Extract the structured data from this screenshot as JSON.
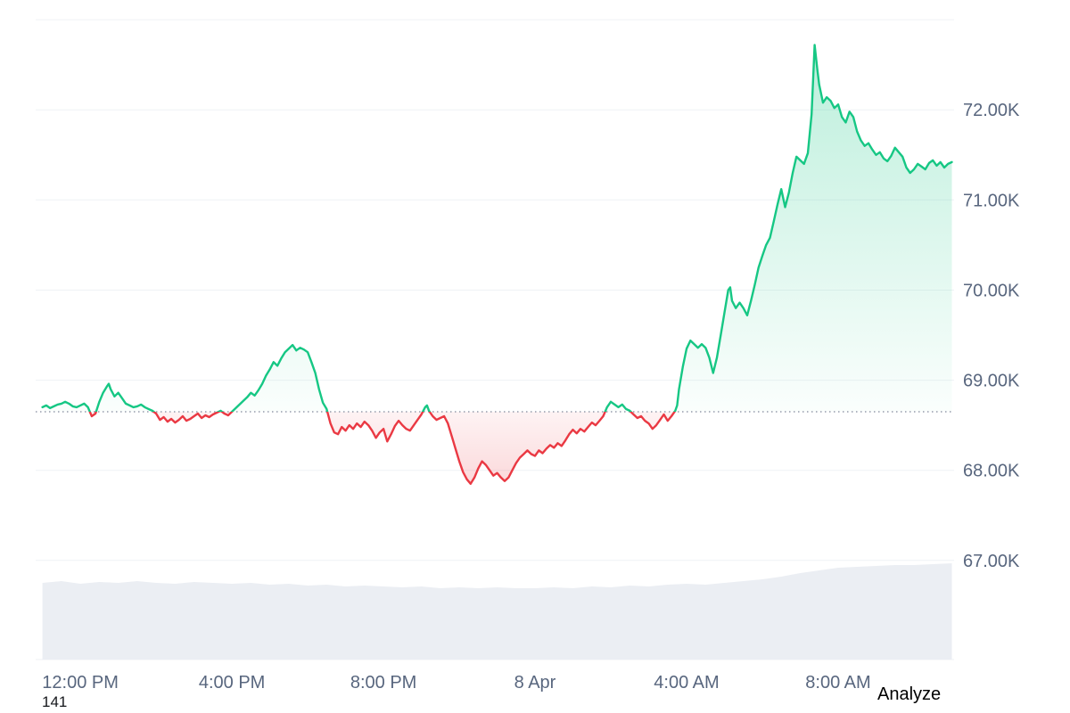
{
  "footer": {
    "left_text": "141",
    "analyze_label": "Analyze"
  },
  "chart_data": {
    "type": "line",
    "title": "",
    "xlabel": "",
    "ylabel": "",
    "x_unit": "hours since 11:00 AM (Apr 7 -> Apr 8)",
    "baseline": 68.65,
    "xlim": [
      -0.18,
      24.06
    ],
    "ylim": [
      65.9,
      73.12
    ],
    "grid": true,
    "legend": "none",
    "y_grid_values": [
      67,
      68,
      69,
      70,
      71,
      72,
      73
    ],
    "y_ticks": [
      {
        "label": "67.00K",
        "value": 67
      },
      {
        "label": "68.00K",
        "value": 68
      },
      {
        "label": "69.00K",
        "value": 69
      },
      {
        "label": "70.00K",
        "value": 70
      },
      {
        "label": "71.00K",
        "value": 71
      },
      {
        "label": "72.00K",
        "value": 72
      }
    ],
    "x_ticks": [
      {
        "label": "12:00 PM",
        "t": 1
      },
      {
        "label": "4:00 PM",
        "t": 5
      },
      {
        "label": "8:00 PM",
        "t": 9
      },
      {
        "label": "8 Apr",
        "t": 13
      },
      {
        "label": "4:00 AM",
        "t": 17
      },
      {
        "label": "8:00 AM",
        "t": 21
      }
    ],
    "colors": {
      "up": "#16c784",
      "down": "#ea3943",
      "grid": "#eff2f5",
      "axis_text": "#58667e",
      "baseline": "#80889a",
      "volume": "#ebeef3"
    },
    "series": [
      {
        "name": "price",
        "points": [
          [
            0.0,
            68.7
          ],
          [
            0.1,
            68.72
          ],
          [
            0.2,
            68.69
          ],
          [
            0.3,
            68.71
          ],
          [
            0.4,
            68.73
          ],
          [
            0.5,
            68.74
          ],
          [
            0.6,
            68.76
          ],
          [
            0.7,
            68.74
          ],
          [
            0.8,
            68.71
          ],
          [
            0.9,
            68.7
          ],
          [
            1.0,
            68.72
          ],
          [
            1.1,
            68.74
          ],
          [
            1.2,
            68.7
          ],
          [
            1.3,
            68.6
          ],
          [
            1.4,
            68.63
          ],
          [
            1.5,
            68.76
          ],
          [
            1.6,
            68.86
          ],
          [
            1.7,
            68.93
          ],
          [
            1.75,
            68.96
          ],
          [
            1.8,
            68.9
          ],
          [
            1.9,
            68.82
          ],
          [
            2.0,
            68.86
          ],
          [
            2.1,
            68.8
          ],
          [
            2.2,
            68.74
          ],
          [
            2.3,
            68.72
          ],
          [
            2.4,
            68.7
          ],
          [
            2.5,
            68.71
          ],
          [
            2.6,
            68.73
          ],
          [
            2.7,
            68.7
          ],
          [
            2.8,
            68.68
          ],
          [
            2.9,
            68.66
          ],
          [
            3.0,
            68.63
          ],
          [
            3.1,
            68.56
          ],
          [
            3.2,
            68.59
          ],
          [
            3.3,
            68.54
          ],
          [
            3.4,
            68.57
          ],
          [
            3.5,
            68.53
          ],
          [
            3.6,
            68.56
          ],
          [
            3.7,
            68.6
          ],
          [
            3.8,
            68.55
          ],
          [
            3.9,
            68.57
          ],
          [
            4.0,
            68.6
          ],
          [
            4.1,
            68.63
          ],
          [
            4.2,
            68.58
          ],
          [
            4.3,
            68.61
          ],
          [
            4.4,
            68.59
          ],
          [
            4.5,
            68.62
          ],
          [
            4.6,
            68.64
          ],
          [
            4.7,
            68.66
          ],
          [
            4.8,
            68.63
          ],
          [
            4.9,
            68.61
          ],
          [
            5.0,
            68.65
          ],
          [
            5.1,
            68.69
          ],
          [
            5.2,
            68.73
          ],
          [
            5.3,
            68.77
          ],
          [
            5.4,
            68.81
          ],
          [
            5.5,
            68.86
          ],
          [
            5.6,
            68.83
          ],
          [
            5.7,
            68.89
          ],
          [
            5.8,
            68.96
          ],
          [
            5.9,
            69.05
          ],
          [
            6.0,
            69.12
          ],
          [
            6.1,
            69.2
          ],
          [
            6.2,
            69.16
          ],
          [
            6.3,
            69.24
          ],
          [
            6.4,
            69.31
          ],
          [
            6.5,
            69.35
          ],
          [
            6.6,
            69.39
          ],
          [
            6.7,
            69.33
          ],
          [
            6.8,
            69.36
          ],
          [
            6.9,
            69.34
          ],
          [
            7.0,
            69.31
          ],
          [
            7.1,
            69.2
          ],
          [
            7.2,
            69.08
          ],
          [
            7.3,
            68.9
          ],
          [
            7.4,
            68.75
          ],
          [
            7.5,
            68.68
          ],
          [
            7.6,
            68.52
          ],
          [
            7.7,
            68.42
          ],
          [
            7.8,
            68.4
          ],
          [
            7.9,
            68.48
          ],
          [
            8.0,
            68.44
          ],
          [
            8.1,
            68.5
          ],
          [
            8.2,
            68.46
          ],
          [
            8.3,
            68.52
          ],
          [
            8.4,
            68.48
          ],
          [
            8.5,
            68.54
          ],
          [
            8.6,
            68.5
          ],
          [
            8.7,
            68.44
          ],
          [
            8.8,
            68.36
          ],
          [
            8.9,
            68.42
          ],
          [
            9.0,
            68.46
          ],
          [
            9.1,
            68.32
          ],
          [
            9.2,
            68.4
          ],
          [
            9.3,
            68.49
          ],
          [
            9.4,
            68.55
          ],
          [
            9.5,
            68.5
          ],
          [
            9.6,
            68.46
          ],
          [
            9.7,
            68.44
          ],
          [
            9.8,
            68.5
          ],
          [
            9.9,
            68.56
          ],
          [
            10.0,
            68.62
          ],
          [
            10.1,
            68.7
          ],
          [
            10.15,
            68.72
          ],
          [
            10.2,
            68.66
          ],
          [
            10.3,
            68.6
          ],
          [
            10.4,
            68.56
          ],
          [
            10.5,
            68.58
          ],
          [
            10.6,
            68.6
          ],
          [
            10.7,
            68.52
          ],
          [
            10.8,
            68.38
          ],
          [
            10.9,
            68.24
          ],
          [
            11.0,
            68.1
          ],
          [
            11.1,
            67.98
          ],
          [
            11.2,
            67.9
          ],
          [
            11.3,
            67.85
          ],
          [
            11.4,
            67.92
          ],
          [
            11.5,
            68.02
          ],
          [
            11.6,
            68.1
          ],
          [
            11.7,
            68.06
          ],
          [
            11.8,
            68.0
          ],
          [
            11.9,
            67.94
          ],
          [
            12.0,
            67.97
          ],
          [
            12.1,
            67.92
          ],
          [
            12.2,
            67.88
          ],
          [
            12.3,
            67.92
          ],
          [
            12.4,
            68.0
          ],
          [
            12.5,
            68.08
          ],
          [
            12.6,
            68.14
          ],
          [
            12.7,
            68.18
          ],
          [
            12.8,
            68.22
          ],
          [
            12.9,
            68.18
          ],
          [
            13.0,
            68.16
          ],
          [
            13.1,
            68.22
          ],
          [
            13.2,
            68.19
          ],
          [
            13.3,
            68.24
          ],
          [
            13.4,
            68.28
          ],
          [
            13.5,
            68.25
          ],
          [
            13.6,
            68.3
          ],
          [
            13.7,
            68.27
          ],
          [
            13.8,
            68.33
          ],
          [
            13.9,
            68.4
          ],
          [
            14.0,
            68.45
          ],
          [
            14.1,
            68.41
          ],
          [
            14.2,
            68.46
          ],
          [
            14.3,
            68.43
          ],
          [
            14.4,
            68.48
          ],
          [
            14.5,
            68.53
          ],
          [
            14.6,
            68.5
          ],
          [
            14.7,
            68.55
          ],
          [
            14.8,
            68.6
          ],
          [
            14.9,
            68.7
          ],
          [
            15.0,
            68.76
          ],
          [
            15.1,
            68.73
          ],
          [
            15.2,
            68.7
          ],
          [
            15.3,
            68.73
          ],
          [
            15.4,
            68.68
          ],
          [
            15.5,
            68.66
          ],
          [
            15.6,
            68.62
          ],
          [
            15.7,
            68.58
          ],
          [
            15.8,
            68.6
          ],
          [
            15.9,
            68.55
          ],
          [
            16.0,
            68.52
          ],
          [
            16.1,
            68.46
          ],
          [
            16.2,
            68.5
          ],
          [
            16.3,
            68.56
          ],
          [
            16.4,
            68.62
          ],
          [
            16.5,
            68.55
          ],
          [
            16.6,
            68.6
          ],
          [
            16.7,
            68.66
          ],
          [
            16.75,
            68.72
          ],
          [
            16.8,
            68.9
          ],
          [
            16.9,
            69.15
          ],
          [
            17.0,
            69.35
          ],
          [
            17.1,
            69.44
          ],
          [
            17.2,
            69.4
          ],
          [
            17.3,
            69.36
          ],
          [
            17.4,
            69.4
          ],
          [
            17.5,
            69.36
          ],
          [
            17.6,
            69.25
          ],
          [
            17.7,
            69.08
          ],
          [
            17.8,
            69.25
          ],
          [
            17.9,
            69.5
          ],
          [
            18.0,
            69.75
          ],
          [
            18.1,
            70.0
          ],
          [
            18.15,
            70.03
          ],
          [
            18.2,
            69.88
          ],
          [
            18.3,
            69.8
          ],
          [
            18.4,
            69.86
          ],
          [
            18.5,
            69.8
          ],
          [
            18.6,
            69.72
          ],
          [
            18.7,
            69.88
          ],
          [
            18.8,
            70.06
          ],
          [
            18.9,
            70.25
          ],
          [
            19.0,
            70.38
          ],
          [
            19.1,
            70.5
          ],
          [
            19.2,
            70.58
          ],
          [
            19.3,
            70.76
          ],
          [
            19.4,
            70.95
          ],
          [
            19.5,
            71.12
          ],
          [
            19.6,
            70.92
          ],
          [
            19.7,
            71.08
          ],
          [
            19.8,
            71.3
          ],
          [
            19.9,
            71.48
          ],
          [
            20.0,
            71.44
          ],
          [
            20.1,
            71.4
          ],
          [
            20.2,
            71.52
          ],
          [
            20.3,
            71.95
          ],
          [
            20.38,
            72.72
          ],
          [
            20.45,
            72.45
          ],
          [
            20.5,
            72.28
          ],
          [
            20.6,
            72.08
          ],
          [
            20.7,
            72.14
          ],
          [
            20.8,
            72.1
          ],
          [
            20.9,
            72.02
          ],
          [
            21.0,
            72.06
          ],
          [
            21.1,
            71.92
          ],
          [
            21.2,
            71.86
          ],
          [
            21.3,
            71.98
          ],
          [
            21.4,
            71.92
          ],
          [
            21.5,
            71.76
          ],
          [
            21.6,
            71.66
          ],
          [
            21.7,
            71.6
          ],
          [
            21.8,
            71.63
          ],
          [
            21.9,
            71.56
          ],
          [
            22.0,
            71.5
          ],
          [
            22.1,
            71.53
          ],
          [
            22.2,
            71.46
          ],
          [
            22.3,
            71.43
          ],
          [
            22.4,
            71.49
          ],
          [
            22.5,
            71.58
          ],
          [
            22.6,
            71.53
          ],
          [
            22.7,
            71.48
          ],
          [
            22.8,
            71.36
          ],
          [
            22.9,
            71.3
          ],
          [
            23.0,
            71.34
          ],
          [
            23.1,
            71.4
          ],
          [
            23.2,
            71.37
          ],
          [
            23.3,
            71.34
          ],
          [
            23.4,
            71.41
          ],
          [
            23.5,
            71.44
          ],
          [
            23.6,
            71.38
          ],
          [
            23.7,
            71.42
          ],
          [
            23.8,
            71.36
          ],
          [
            23.9,
            71.4
          ],
          [
            24.0,
            71.42
          ]
        ]
      }
    ],
    "volume": {
      "points": [
        [
          0,
          86
        ],
        [
          0.5,
          88
        ],
        [
          1,
          85
        ],
        [
          1.5,
          87
        ],
        [
          2,
          86
        ],
        [
          2.5,
          88
        ],
        [
          3,
          86
        ],
        [
          3.5,
          85
        ],
        [
          4,
          87
        ],
        [
          4.5,
          86
        ],
        [
          5,
          85
        ],
        [
          5.5,
          86
        ],
        [
          6,
          84
        ],
        [
          6.5,
          85
        ],
        [
          7,
          83
        ],
        [
          7.5,
          84
        ],
        [
          8,
          82
        ],
        [
          8.5,
          83
        ],
        [
          9,
          82
        ],
        [
          9.5,
          81
        ],
        [
          10,
          82
        ],
        [
          10.5,
          80
        ],
        [
          11,
          81
        ],
        [
          11.5,
          80
        ],
        [
          12,
          81
        ],
        [
          12.5,
          80
        ],
        [
          13,
          80
        ],
        [
          13.5,
          81
        ],
        [
          14,
          80
        ],
        [
          14.5,
          82
        ],
        [
          15,
          81
        ],
        [
          15.5,
          83
        ],
        [
          16,
          82
        ],
        [
          16.5,
          84
        ],
        [
          17,
          85
        ],
        [
          17.5,
          84
        ],
        [
          18,
          86
        ],
        [
          18.5,
          88
        ],
        [
          19,
          90
        ],
        [
          19.5,
          93
        ],
        [
          20,
          97
        ],
        [
          20.5,
          100
        ],
        [
          21,
          103
        ],
        [
          21.5,
          104
        ],
        [
          22,
          105
        ],
        [
          22.5,
          106
        ],
        [
          23,
          106
        ],
        [
          23.5,
          107
        ],
        [
          24,
          108
        ]
      ]
    }
  }
}
